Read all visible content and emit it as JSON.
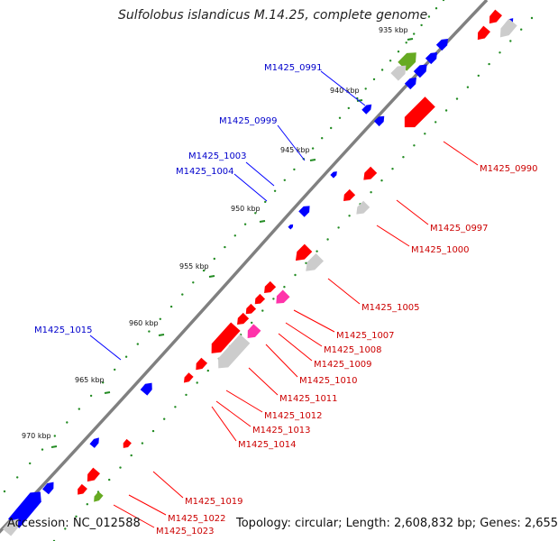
{
  "title": "Sulfolobus islandicus M.14.25, complete genome",
  "footer": {
    "accession": "Accession: NC_012588",
    "topology": "Topology: circular; Length: 2,608,832 bp; Genes: 2,655"
  },
  "colors": {
    "backbone": "#808080",
    "forward_gene": "#0000ff",
    "reverse_gene": "#ff0000",
    "forward_label": "#0000cc",
    "reverse_label": "#cc0000",
    "gray_feature": "#cccccc",
    "pink_feature": "#ff33aa",
    "olive_feature": "#66aa22",
    "tick": "#228b22"
  },
  "ticks": [
    "935 kbp",
    "940 kbp",
    "945 kbp",
    "950 kbp",
    "955 kbp",
    "960 kbp",
    "965 kbp",
    "970 kbp"
  ],
  "forward_labels": [
    "M1425_0991",
    "M1425_0999",
    "M1425_1003",
    "M1425_1004",
    "M1425_1015"
  ],
  "reverse_labels": [
    "M1425_0990",
    "M1425_0997",
    "M1425_1000",
    "M1425_1005",
    "M1425_1007",
    "M1425_1008",
    "M1425_1009",
    "M1425_1010",
    "M1425_1011",
    "M1425_1012",
    "M1425_1013",
    "M1425_1014",
    "M1425_1019",
    "M1425_1022",
    "M1425_1023"
  ]
}
